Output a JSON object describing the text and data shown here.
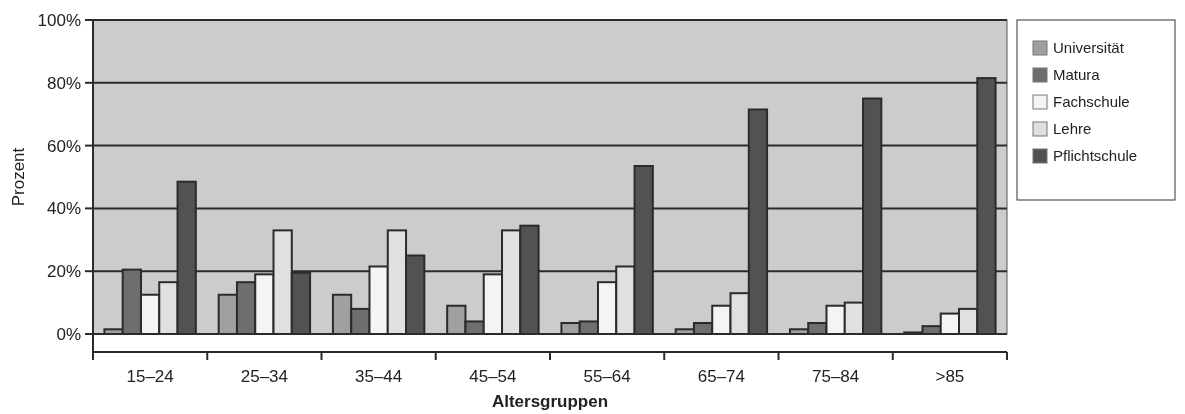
{
  "chart_data": {
    "type": "bar",
    "xlabel": "Altersgruppen",
    "ylabel": "Prozent",
    "categories": [
      "15–24",
      "25–34",
      "35–44",
      "45–54",
      "55–64",
      "65–74",
      "75–84",
      ">85"
    ],
    "series": [
      {
        "name": "Universität",
        "color": "#a0a0a0",
        "values": [
          1.5,
          12.5,
          12.5,
          9,
          3.5,
          1.5,
          1.5,
          0.5
        ]
      },
      {
        "name": "Matura",
        "color": "#6e6e6e",
        "values": [
          20.5,
          16.5,
          8,
          4,
          4,
          3.5,
          3.5,
          2.5
        ]
      },
      {
        "name": "Fachschule",
        "color": "#f4f4f4",
        "values": [
          12.5,
          19,
          21.5,
          19,
          16.5,
          9,
          9,
          6.5
        ]
      },
      {
        "name": "Lehre",
        "color": "#e0e0e0",
        "values": [
          16.5,
          33,
          33,
          33,
          21.5,
          13,
          10,
          8
        ]
      },
      {
        "name": "Pflichtschule",
        "color": "#525252",
        "values": [
          48.5,
          19.5,
          25,
          34.5,
          53.5,
          71.5,
          75,
          81.5
        ]
      }
    ],
    "ylim": [
      0,
      100
    ],
    "yticks": [
      {
        "value": 0,
        "label": "0%"
      },
      {
        "value": 20,
        "label": "20%"
      },
      {
        "value": 40,
        "label": "40%"
      },
      {
        "value": 60,
        "label": "60%"
      },
      {
        "value": 80,
        "label": "80%"
      },
      {
        "value": 100,
        "label": "100%"
      }
    ],
    "grid": "y",
    "legend": "right"
  }
}
